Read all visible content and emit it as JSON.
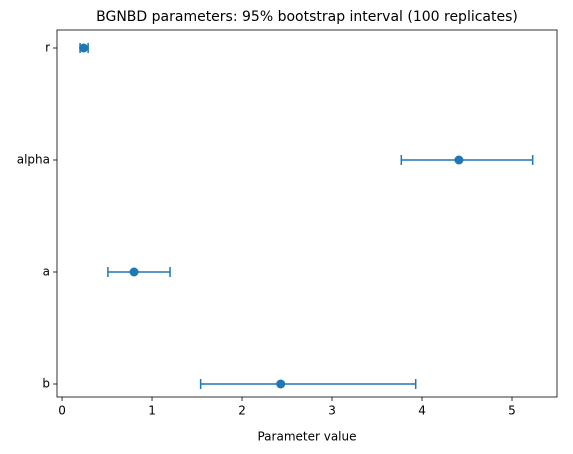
{
  "chart_data": {
    "type": "errorbar",
    "title": "BGNBD parameters: 95% bootstrap interval (100 replicates)",
    "x_label": "Parameter value",
    "categories": [
      "r",
      "alpha",
      "a",
      "b"
    ],
    "values": [
      0.24,
      4.41,
      0.8,
      2.43
    ],
    "lower": [
      0.2,
      3.77,
      0.51,
      1.54
    ],
    "upper": [
      0.29,
      5.23,
      1.2,
      3.93
    ],
    "color": "#1f77b4",
    "xlim": [
      -0.056,
      5.5
    ],
    "xticks": [
      0,
      1,
      2,
      3,
      4,
      5
    ]
  }
}
